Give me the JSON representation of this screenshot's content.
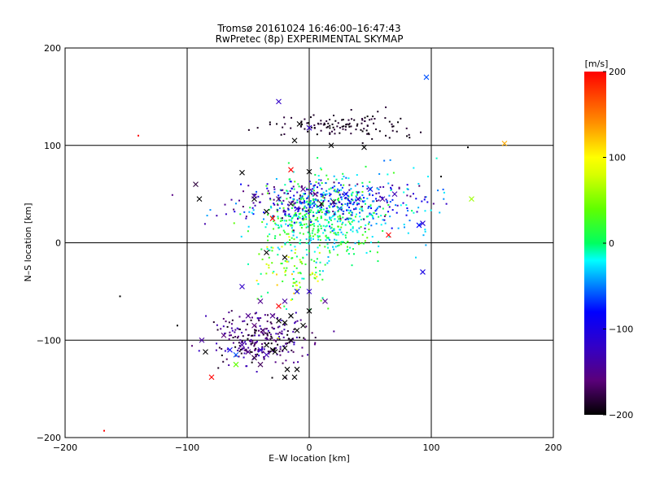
{
  "chart_data": {
    "type": "scatter",
    "title": "Tromsø 20161024 16:46:00–16:47:43",
    "subtitle": "RwPretec (8p) EXPERIMENTAL SKYMAP",
    "xlabel": "E–W location [km]",
    "ylabel": "N–S location [km]",
    "xlim": [
      -200,
      200
    ],
    "ylim": [
      -200,
      200
    ],
    "xticks": [
      -200,
      -100,
      0,
      100,
      200
    ],
    "yticks": [
      -200,
      -100,
      0,
      100,
      200
    ],
    "x_tick_labels": [
      "−200",
      "−100",
      "0",
      "100",
      "200"
    ],
    "y_tick_labels": [
      "−200",
      "−100",
      "0",
      "100",
      "200"
    ],
    "grid": true,
    "colorbar": {
      "label": "[m/s]",
      "range": [
        -200,
        200
      ],
      "ticks": [
        200,
        100,
        0,
        -100,
        -200
      ],
      "tick_labels": [
        "200",
        "100",
        "0",
        "−100",
        "−200"
      ]
    },
    "marker_series": [
      {
        "marker": "x",
        "points": [
          [
            -25,
            145,
            -120
          ],
          [
            96,
            170,
            -60
          ],
          [
            160,
            102,
            130
          ],
          [
            -8,
            122,
            -200
          ],
          [
            -12,
            105,
            -200
          ],
          [
            0,
            118,
            -120
          ],
          [
            45,
            98,
            -200
          ],
          [
            18,
            100,
            -200
          ],
          [
            -55,
            72,
            -200
          ],
          [
            -15,
            75,
            250
          ],
          [
            0,
            73,
            -200
          ],
          [
            -45,
            45,
            -200
          ],
          [
            -93,
            60,
            -180
          ],
          [
            -90,
            45,
            -200
          ],
          [
            -45,
            48,
            -140
          ],
          [
            -35,
            32,
            -200
          ],
          [
            -30,
            25,
            220
          ],
          [
            -25,
            45,
            -170
          ],
          [
            -15,
            40,
            -180
          ],
          [
            -10,
            35,
            -120
          ],
          [
            -5,
            55,
            -150
          ],
          [
            5,
            50,
            -160
          ],
          [
            10,
            40,
            -190
          ],
          [
            20,
            42,
            -175
          ],
          [
            25,
            35,
            -60
          ],
          [
            30,
            50,
            -80
          ],
          [
            40,
            45,
            -120
          ],
          [
            50,
            55,
            -100
          ],
          [
            60,
            45,
            -140
          ],
          [
            70,
            50,
            -130
          ],
          [
            90,
            18,
            -80
          ],
          [
            93,
            20,
            -110
          ],
          [
            133,
            45,
            60
          ],
          [
            65,
            8,
            250
          ],
          [
            -35,
            -10,
            -200
          ],
          [
            -20,
            -15,
            -200
          ],
          [
            -40,
            -60,
            -150
          ],
          [
            -20,
            -60,
            -140
          ],
          [
            -10,
            -50,
            -90
          ],
          [
            0,
            -50,
            -120
          ],
          [
            13,
            -60,
            -150
          ],
          [
            -50,
            -75,
            -150
          ],
          [
            -45,
            -85,
            -160
          ],
          [
            -38,
            -90,
            -170
          ],
          [
            -30,
            -75,
            -150
          ],
          [
            -25,
            -80,
            -200
          ],
          [
            -20,
            -82,
            -200
          ],
          [
            -15,
            -75,
            -200
          ],
          [
            -10,
            -90,
            -200
          ],
          [
            -5,
            -85,
            -200
          ],
          [
            0,
            -70,
            -200
          ],
          [
            -70,
            -95,
            -160
          ],
          [
            -88,
            -100,
            -140
          ],
          [
            -85,
            -112,
            -200
          ],
          [
            -65,
            -110,
            -90
          ],
          [
            -60,
            -115,
            -60
          ],
          [
            -55,
            -105,
            -140
          ],
          [
            -50,
            -112,
            -150
          ],
          [
            -45,
            -118,
            -180
          ],
          [
            -40,
            -125,
            -170
          ],
          [
            -35,
            -105,
            -200
          ],
          [
            -30,
            -110,
            -200
          ],
          [
            -28,
            -112,
            -200
          ],
          [
            -20,
            -108,
            -200
          ],
          [
            -15,
            -100,
            -200
          ],
          [
            -60,
            -125,
            40
          ],
          [
            -40,
            -110,
            -120
          ],
          [
            -10,
            -130,
            -200
          ],
          [
            -18,
            -130,
            -200
          ],
          [
            -20,
            -138,
            -200
          ],
          [
            -12,
            -138,
            -200
          ],
          [
            -80,
            -138,
            230
          ],
          [
            -25,
            -65,
            230
          ],
          [
            -55,
            -45,
            -120
          ],
          [
            93,
            -30,
            -100
          ],
          [
            -35,
            -115,
            -130
          ]
        ]
      }
    ]
  }
}
